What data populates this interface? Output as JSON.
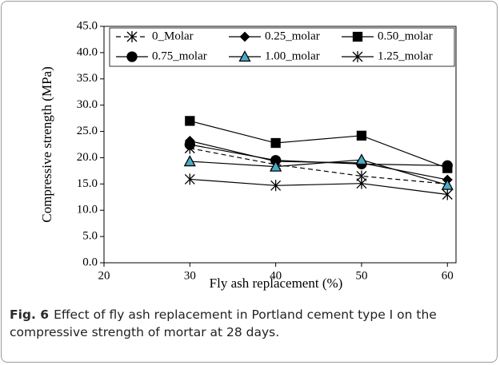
{
  "chart_data": {
    "type": "line",
    "xlabel": "Fly ash replacement (%)",
    "ylabel": "Compressive strength (MPa)",
    "x": [
      30,
      40,
      50,
      60
    ],
    "xlim": [
      20,
      61
    ],
    "xticks": [
      20,
      30,
      40,
      50,
      60
    ],
    "ylim": [
      0,
      45
    ],
    "yticks": [
      {
        "value": 0,
        "label": "0.0"
      },
      {
        "value": 5,
        "label": "5.0"
      },
      {
        "value": 10,
        "label": "10.0"
      },
      {
        "value": 15,
        "label": "15.0"
      },
      {
        "value": 20,
        "label": "20.0"
      },
      {
        "value": 25,
        "label": "25.0"
      },
      {
        "value": 30,
        "label": "30.0"
      },
      {
        "value": 35,
        "label": "35.0"
      },
      {
        "value": 40,
        "label": "40.0"
      },
      {
        "value": 45,
        "label": "45.0"
      }
    ],
    "legend": "top",
    "series": [
      {
        "name": "0_Molar",
        "color": "#000000",
        "marker": "asterisk",
        "dashed": true,
        "values": [
          21.8,
          18.7,
          16.5,
          15.0
        ]
      },
      {
        "name": "0.25_molar",
        "color": "#000000",
        "marker": "diamond",
        "values": [
          23.2,
          19.3,
          19.0,
          15.8
        ]
      },
      {
        "name": "0.50_molar",
        "color": "#000000",
        "marker": "square",
        "values": [
          27.0,
          22.8,
          24.2,
          18.0
        ]
      },
      {
        "name": "0.75_molar",
        "color": "#000000",
        "marker": "circle",
        "values": [
          22.5,
          19.5,
          18.8,
          18.5
        ]
      },
      {
        "name": "1.00_molar",
        "color": "#000000",
        "marker": "triangle",
        "marker_fill": "#4bacc6",
        "values": [
          19.3,
          18.3,
          19.6,
          14.8
        ]
      },
      {
        "name": "1.25_molar",
        "color": "#000000",
        "marker": "asterisk",
        "values": [
          15.9,
          14.7,
          15.1,
          13.0
        ]
      }
    ]
  },
  "caption": {
    "label": "Fig. 6",
    "text": "Effect of fly ash replacement in Portland cement type I on the compressive strength of mortar at 28 days."
  }
}
